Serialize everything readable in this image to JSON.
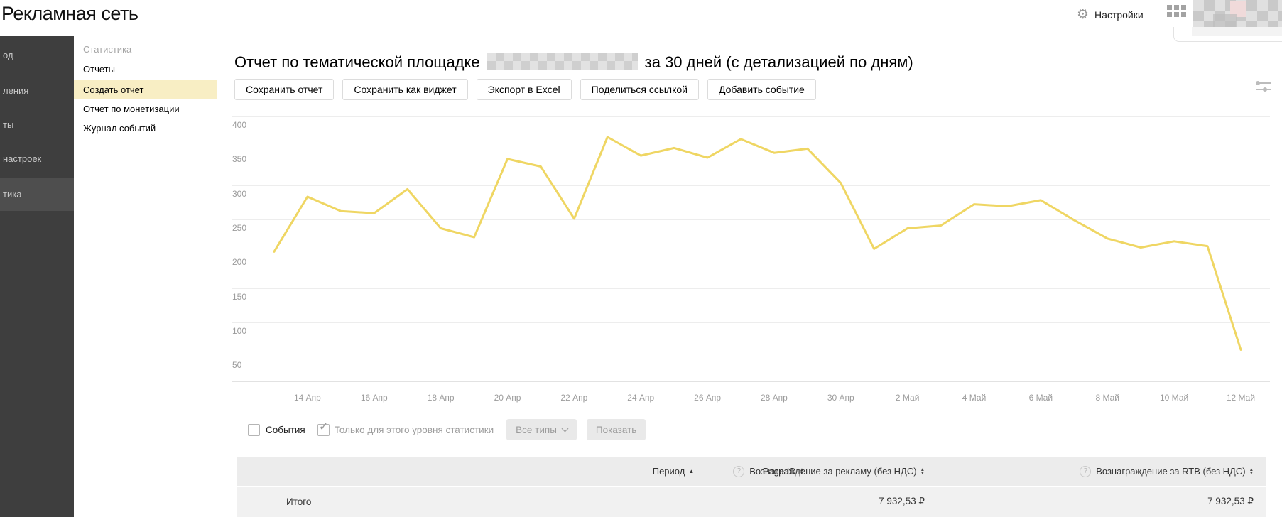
{
  "header": {
    "brand": "Рекламная сеть",
    "settings_label": "Настройки",
    "icons": {
      "settings_gear": "⚙"
    }
  },
  "sidebar": {
    "items": [
      {
        "label": "од",
        "active": false
      },
      {
        "label": "ления",
        "active": false
      },
      {
        "label": "ты",
        "active": false
      },
      {
        "label": "настроек",
        "active": false
      },
      {
        "label": "тика",
        "active": true
      }
    ]
  },
  "submenu": {
    "section": "Статистика",
    "items": [
      {
        "label": "Отчеты",
        "active": false
      },
      {
        "label": "Создать отчет",
        "active": true
      },
      {
        "label": "Отчет по монетизации",
        "active": false
      },
      {
        "label": "Журнал событий",
        "active": false
      }
    ]
  },
  "report": {
    "title_prefix": "Отчет по тематической площадке",
    "title_suffix": "за 30 дней (с детализацией по дням)",
    "toolbar": [
      "Сохранить отчет",
      "Сохранить как виджет",
      "Экспорт в Excel",
      "Поделиться ссылкой",
      "Добавить событие"
    ]
  },
  "chart_data": {
    "type": "line",
    "title": "",
    "x": [
      "13 Апр",
      "14 Апр",
      "15 Апр",
      "16 Апр",
      "17 Апр",
      "18 Апр",
      "19 Апр",
      "20 Апр",
      "21 Апр",
      "22 Апр",
      "23 Апр",
      "24 Апр",
      "25 Апр",
      "26 Апр",
      "27 Апр",
      "28 Апр",
      "29 Апр",
      "30 Апр",
      "1 Май",
      "2 Май",
      "3 Май",
      "4 Май",
      "5 Май",
      "6 Май",
      "7 Май",
      "8 Май",
      "9 Май",
      "10 Май",
      "11 Май",
      "12 Май"
    ],
    "values": [
      203,
      283,
      262,
      259,
      294,
      237,
      224,
      338,
      327,
      251,
      370,
      343,
      354,
      340,
      367,
      347,
      353,
      303,
      207,
      237,
      241,
      272,
      269,
      278,
      249,
      222,
      209,
      218,
      211,
      60
    ],
    "x_tick_labels": [
      "14 Апр",
      "16 Апр",
      "18 Апр",
      "20 Апр",
      "22 Апр",
      "24 Апр",
      "26 Апр",
      "28 Апр",
      "30 Апр",
      "2 Май",
      "4 Май",
      "6 Май",
      "8 Май",
      "10 Май",
      "12 Май"
    ],
    "y_ticks": [
      400,
      350,
      300,
      250,
      200,
      150,
      100,
      50
    ],
    "ylim": [
      15,
      415
    ],
    "grid": true,
    "legend": false,
    "line_color": "#efd663"
  },
  "events_bar": {
    "events_label": "События",
    "events_checked": false,
    "level_label": "Только для этого уровня статистики",
    "level_checked": true,
    "level_check_glyph": "✓",
    "type_filter_label": "Все типы",
    "show_label": "Показать"
  },
  "table": {
    "columns": [
      {
        "label": "Период",
        "sort": "asc",
        "help": false
      },
      {
        "label": "Page ID",
        "sort": "both",
        "help": false
      },
      {
        "label": "Вознаграждение за рекламу (без НДС)",
        "sort": "both",
        "help": true
      },
      {
        "label": "Вознаграждение за RTB (без НДС)",
        "sort": "both",
        "help": true
      }
    ],
    "total": {
      "label": "Итого",
      "ad_revenue": "7 932,53 ₽",
      "rtb_revenue": "7 932,53 ₽"
    }
  }
}
